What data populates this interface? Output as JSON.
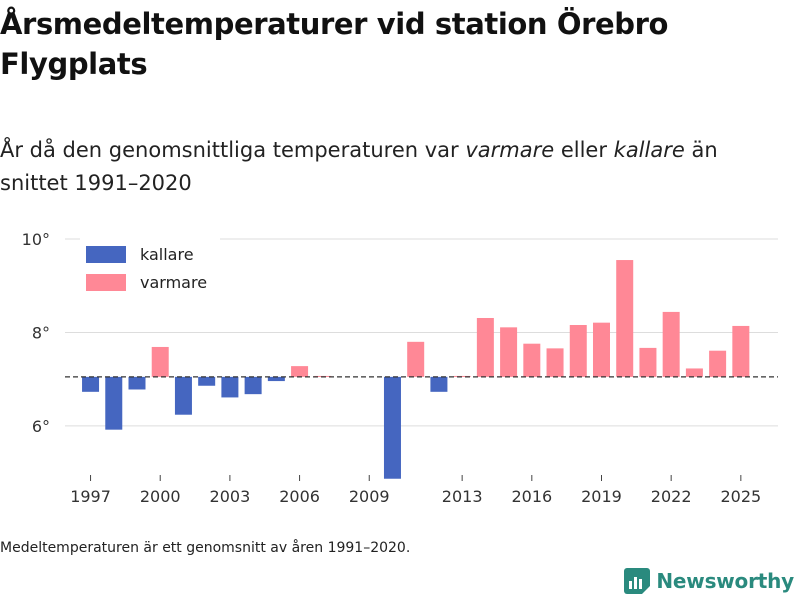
{
  "title": "Årsmedeltemperaturer vid station Örebro Flygplats",
  "subtitle": {
    "part1": "År då den genomsnittliga temperaturen var ",
    "warm_word": "varmare",
    "part2": " eller ",
    "cold_word": "kallare",
    "part3": " än snittet 1991–2020"
  },
  "footnote": "Medeltemperaturen är ett genomsnitt av åren 1991–2020.",
  "brand": "Newsworthy",
  "colors": {
    "colder": "#4566c0",
    "warmer": "#ff8896",
    "baseline": "#333333",
    "grid": "#dddddd",
    "brand": "#2a8a7e"
  },
  "chart_data": {
    "type": "bar",
    "title": "Årsmedeltemperaturer vid station Örebro Flygplats",
    "baseline": 7.05,
    "baseline_style": "dashed",
    "ylim": [
      4.95,
      10.3
    ],
    "xlim": [
      1995.9,
      2026.6
    ],
    "yticks": [
      6,
      8,
      10
    ],
    "ytick_labels": [
      "6°",
      "8°",
      "10°"
    ],
    "xticks": [
      1997,
      2000,
      2003,
      2006,
      2009,
      2013,
      2016,
      2019,
      2022,
      2025
    ],
    "xtick_labels": [
      "1997",
      "2000",
      "2003",
      "2006",
      "2009",
      "2013",
      "2016",
      "2019",
      "2022",
      "2025"
    ],
    "legend": [
      {
        "key": "colder",
        "label": "kallare"
      },
      {
        "key": "warmer",
        "label": "varmare"
      }
    ],
    "legend_position": "top-left",
    "years": [
      1997,
      1998,
      1999,
      2000,
      2001,
      2002,
      2003,
      2004,
      2005,
      2006,
      2007,
      2010,
      2011,
      2012,
      2013,
      2014,
      2015,
      2016,
      2017,
      2018,
      2019,
      2020,
      2021,
      2022,
      2023,
      2024,
      2025
    ],
    "values": [
      6.73,
      5.92,
      6.78,
      7.69,
      6.24,
      6.86,
      6.61,
      6.68,
      6.96,
      7.28,
      7.07,
      4.87,
      7.8,
      6.73,
      7.07,
      8.31,
      8.11,
      7.76,
      7.66,
      8.16,
      8.21,
      9.55,
      7.67,
      8.44,
      7.23,
      7.61,
      8.14
    ]
  }
}
